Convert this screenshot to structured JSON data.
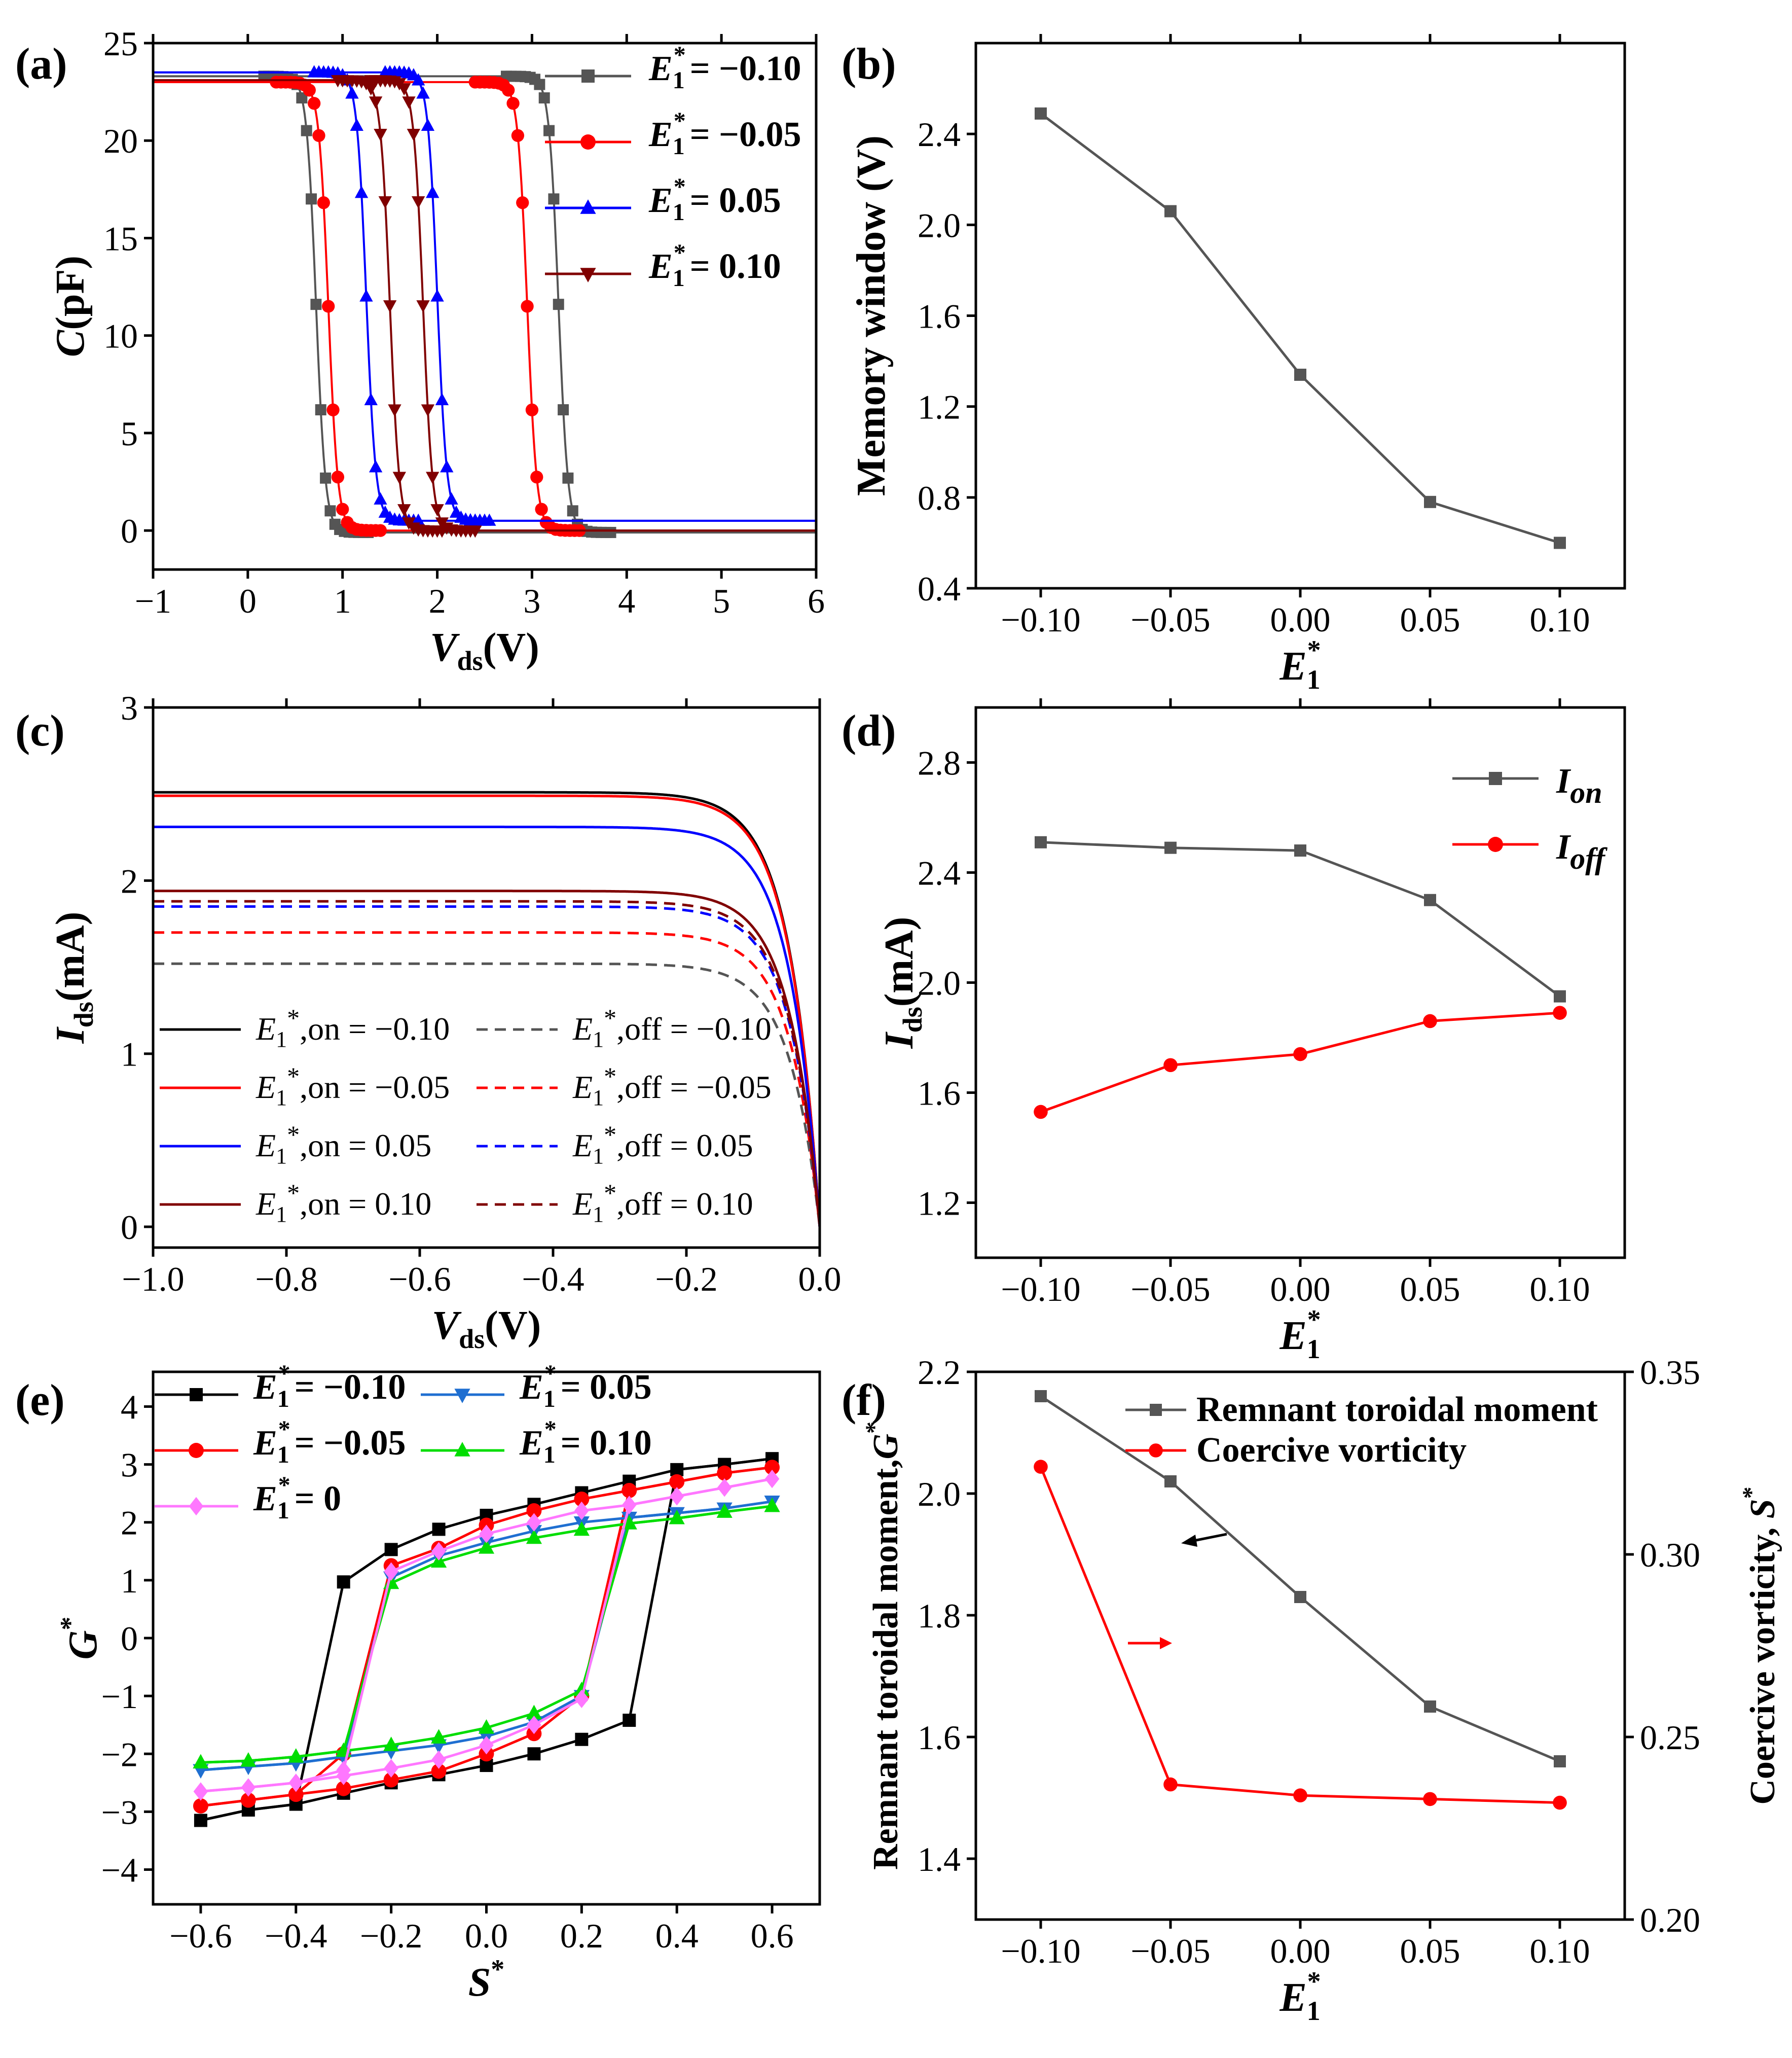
{
  "chart_data": [
    {
      "id": "a",
      "type": "line",
      "panel_label": "(a)",
      "xlabel_main": "V",
      "xlabel_sub": "ds",
      "xlabel_unit": "(V)",
      "ylabel_main": "C",
      "ylabel_unit": "(pF)",
      "xlim": [
        -1,
        6
      ],
      "ylim": [
        -2,
        25
      ],
      "xticks": [
        "−1",
        "0",
        "1",
        "2",
        "3",
        "4",
        "5",
        "6"
      ],
      "yticks": [
        "0",
        "5",
        "10",
        "15",
        "20",
        "25"
      ],
      "legend_var": "E",
      "legend_sub": "1",
      "legend_sup": "*",
      "series": [
        {
          "name": "= −0.10",
          "color": "#555555",
          "marker": "square",
          "high": 23.3,
          "low": -0.1,
          "up": 0.72,
          "down": 3.28,
          "w": 0.05
        },
        {
          "name": "= −0.05",
          "color": "#ff0000",
          "marker": "circle",
          "high": 23.0,
          "low": 0.0,
          "up": 0.85,
          "down": 2.95,
          "w": 0.05
        },
        {
          "name": "= 0.05",
          "color": "#0000ff",
          "marker": "triangle-up",
          "high": 23.5,
          "low": 0.5,
          "up": 1.25,
          "down": 2.0,
          "w": 0.05
        },
        {
          "name": "= 0.10",
          "color": "#800000",
          "marker": "triangle-down",
          "high": 23.1,
          "low": 0.0,
          "up": 1.5,
          "down": 1.85,
          "w": 0.05
        }
      ]
    },
    {
      "id": "b",
      "type": "line",
      "panel_label": "(b)",
      "ylabel": "Memory window (V)",
      "xlabel_main": "E",
      "xlabel_sub": "1",
      "xlabel_sup": "*",
      "xlim": [
        -0.125,
        0.125
      ],
      "ylim": [
        0.4,
        2.8
      ],
      "xticks": [
        "−0.10",
        "−0.05",
        "0.00",
        "0.05",
        "0.10"
      ],
      "yticks": [
        "0.4",
        "0.8",
        "1.2",
        "1.6",
        "2.0",
        "2.4"
      ],
      "x": [
        -0.1,
        -0.05,
        0.0,
        0.05,
        0.1
      ],
      "series": [
        {
          "name": "Memory window",
          "color": "#555555",
          "marker": "square",
          "values": [
            2.49,
            2.06,
            1.34,
            0.78,
            0.6
          ]
        }
      ]
    },
    {
      "id": "c",
      "type": "line",
      "panel_label": "(c)",
      "xlabel_main": "V",
      "xlabel_sub": "ds",
      "xlabel_unit": "(V)",
      "ylabel_main": "I",
      "ylabel_sub": "ds",
      "ylabel_unit": "(mA)",
      "xlim": [
        -1.0,
        0.0
      ],
      "ylim": [
        -0.12,
        3.0
      ],
      "xticks": [
        "−1.0",
        "−0.8",
        "−0.6",
        "−0.4",
        "−0.2",
        "0.0"
      ],
      "yticks": [
        "0",
        "1",
        "2",
        "3"
      ],
      "legend_var": "E",
      "legend_sub": "1",
      "legend_sup": "*",
      "series": [
        {
          "name": ",on = −0.10",
          "color": "#000000",
          "dash": false,
          "sat": 2.51
        },
        {
          "name": ",off = −0.10",
          "color": "#555555",
          "dash": true,
          "sat": 1.52
        },
        {
          "name": ",on = −0.05",
          "color": "#ff0000",
          "dash": false,
          "sat": 2.49
        },
        {
          "name": ",off = −0.05",
          "color": "#ff0000",
          "dash": true,
          "sat": 1.7
        },
        {
          "name": ",on = 0.05",
          "color": "#0000ff",
          "dash": false,
          "sat": 2.31
        },
        {
          "name": ",off = 0.05",
          "color": "#0000ff",
          "dash": true,
          "sat": 1.85
        },
        {
          "name": ",on = 0.10",
          "color": "#800000",
          "dash": false,
          "sat": 1.94
        },
        {
          "name": ",off = 0.10",
          "color": "#800000",
          "dash": true,
          "sat": 1.88
        }
      ]
    },
    {
      "id": "d",
      "type": "line",
      "panel_label": "(d)",
      "ylabel_main": "I",
      "ylabel_sub": "ds",
      "ylabel_unit": "(mA)",
      "xlabel_main": "E",
      "xlabel_sub": "1",
      "xlabel_sup": "*",
      "xlim": [
        -0.125,
        0.125
      ],
      "ylim": [
        1.0,
        3.0
      ],
      "xticks": [
        "−0.10",
        "−0.05",
        "0.00",
        "0.05",
        "0.10"
      ],
      "yticks": [
        "1.2",
        "1.6",
        "2.0",
        "2.4",
        "2.8"
      ],
      "x": [
        -0.1,
        -0.05,
        0.0,
        0.05,
        0.1
      ],
      "series": [
        {
          "name": "I",
          "sub": "on",
          "color": "#555555",
          "marker": "square",
          "values": [
            2.51,
            2.49,
            2.48,
            2.3,
            1.95
          ]
        },
        {
          "name": "I",
          "sub": "off",
          "color": "#ff0000",
          "marker": "circle",
          "values": [
            1.53,
            1.7,
            1.74,
            1.86,
            1.89
          ]
        }
      ]
    },
    {
      "id": "e",
      "type": "line",
      "panel_label": "(e)",
      "xlabel_main": "S",
      "xlabel_sup": "*",
      "ylabel_main": "G",
      "ylabel_sup": "*",
      "xlim": [
        -0.7,
        0.7
      ],
      "ylim": [
        -4.6,
        4.6
      ],
      "xticks": [
        "−0.6",
        "−0.4",
        "−0.2",
        "0.0",
        "0.2",
        "0.4",
        "0.6"
      ],
      "yticks": [
        "−4",
        "−3",
        "−2",
        "−1",
        "0",
        "1",
        "2",
        "3",
        "4"
      ],
      "legend_var": "E",
      "legend_sub": "1",
      "legend_sup": "*",
      "x": [
        -0.6,
        -0.5,
        -0.4,
        -0.3,
        -0.2,
        -0.1,
        0.0,
        0.1,
        0.2,
        0.3,
        0.4,
        0.5,
        0.6
      ],
      "series": [
        {
          "name": "= −0.10",
          "color": "#000000",
          "marker": "square",
          "upper": [
            -3.15,
            -2.97,
            -2.87,
            0.97,
            1.53,
            1.88,
            2.12,
            2.31,
            2.51,
            2.71,
            2.91,
            3.0,
            3.1
          ],
          "lower": [
            -3.15,
            -2.97,
            -2.87,
            -2.68,
            -2.5,
            -2.36,
            -2.2,
            -2.0,
            -1.75,
            -1.42,
            2.91,
            3.0,
            3.1
          ]
        },
        {
          "name": "= −0.05",
          "color": "#ff0000",
          "marker": "circle",
          "upper": [
            -2.9,
            -2.8,
            -2.7,
            -2.0,
            1.25,
            1.55,
            1.95,
            2.2,
            2.4,
            2.55,
            2.7,
            2.85,
            2.95
          ],
          "lower": [
            -2.9,
            -2.8,
            -2.7,
            -2.6,
            -2.45,
            -2.3,
            -2.0,
            -1.65,
            -1.0,
            2.55,
            2.7,
            2.85,
            2.95
          ]
        },
        {
          "name": "= 0.05",
          "color": "#1f6fd1",
          "marker": "triangle-down",
          "upper": [
            -2.28,
            -2.22,
            -2.16,
            -2.05,
            1.05,
            1.42,
            1.65,
            1.85,
            2.0,
            2.08,
            2.16,
            2.24,
            2.36
          ],
          "lower": [
            -2.28,
            -2.22,
            -2.16,
            -2.05,
            -1.95,
            -1.85,
            -1.7,
            -1.45,
            -1.0,
            2.08,
            2.16,
            2.24,
            2.36
          ]
        },
        {
          "name": "= 0.10",
          "color": "#00dd00",
          "marker": "triangle-up",
          "upper": [
            -2.15,
            -2.12,
            -2.05,
            -1.95,
            0.95,
            1.32,
            1.56,
            1.73,
            1.87,
            1.98,
            2.07,
            2.18,
            2.28
          ],
          "lower": [
            -2.15,
            -2.12,
            -2.05,
            -1.95,
            -1.85,
            -1.72,
            -1.55,
            -1.3,
            -0.9,
            1.98,
            2.07,
            2.18,
            2.28
          ]
        },
        {
          "name": "= 0",
          "color": "#ff77ff",
          "marker": "diamond",
          "upper": [
            -2.65,
            -2.58,
            -2.5,
            -2.28,
            1.15,
            1.5,
            1.8,
            2.0,
            2.2,
            2.3,
            2.45,
            2.6,
            2.75
          ],
          "lower": [
            -2.65,
            -2.58,
            -2.5,
            -2.38,
            -2.25,
            -2.1,
            -1.85,
            -1.5,
            -1.05,
            2.3,
            2.45,
            2.6,
            2.75
          ]
        }
      ]
    },
    {
      "id": "f",
      "type": "line",
      "panel_label": "(f)",
      "ylabel_left_main": "Remnant toroidal moment,",
      "ylabel_left_var": "G",
      "ylabel_left_sup": "*",
      "ylabel_right_main": "Coercive vorticity, ",
      "ylabel_right_var": "S",
      "ylabel_right_sup": "*",
      "xlabel_main": "E",
      "xlabel_sub": "1",
      "xlabel_sup": "*",
      "xlim": [
        -0.125,
        0.125
      ],
      "ylim": [
        1.3,
        2.2
      ],
      "ylim_right": [
        0.2,
        0.35
      ],
      "xticks": [
        "−0.10",
        "−0.05",
        "0.00",
        "0.05",
        "0.10"
      ],
      "yticks": [
        "1.4",
        "1.6",
        "1.8",
        "2.0",
        "2.2"
      ],
      "yticks_right": [
        "0.20",
        "0.25",
        "0.30",
        "0.35"
      ],
      "x": [
        -0.1,
        -0.05,
        0.0,
        0.05,
        0.1
      ],
      "series": [
        {
          "name": "Remnant toroidal moment",
          "color": "#555555",
          "marker": "square",
          "axis": "left",
          "values": [
            2.16,
            2.02,
            1.83,
            1.65,
            1.56
          ]
        },
        {
          "name": "Coercive vorticity",
          "color": "#ff0000",
          "marker": "circle",
          "axis": "right",
          "values": [
            0.324,
            0.237,
            0.234,
            0.233,
            0.232
          ]
        }
      ]
    }
  ]
}
